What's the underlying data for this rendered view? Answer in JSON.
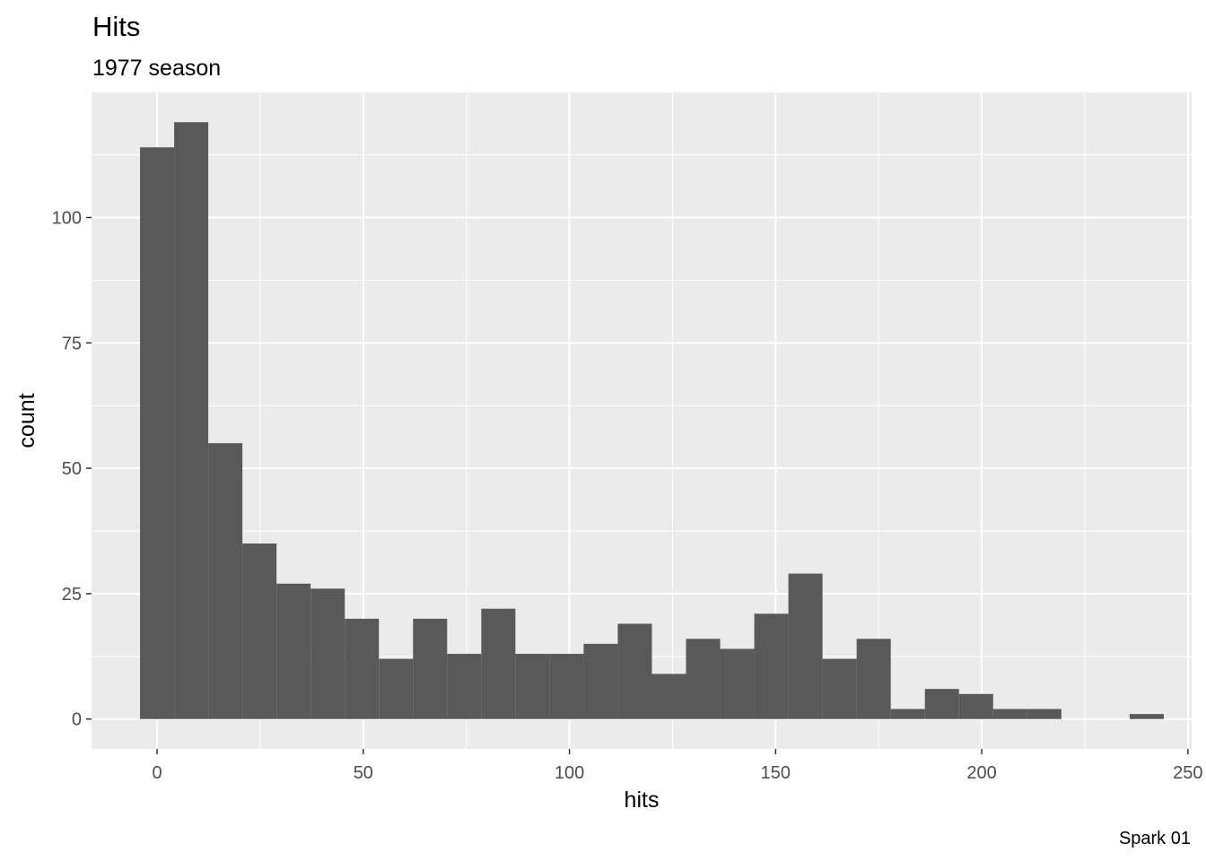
{
  "chart_data": {
    "type": "bar",
    "title": "Hits",
    "subtitle": "1977 season",
    "xlabel": "hits",
    "ylabel": "count",
    "caption": "Spark 01",
    "bin_width": 8.2759,
    "bins": [
      {
        "x": 0.0,
        "count": 114
      },
      {
        "x": 8.2759,
        "count": 119
      },
      {
        "x": 16.5517,
        "count": 55
      },
      {
        "x": 24.8276,
        "count": 35
      },
      {
        "x": 33.1034,
        "count": 27
      },
      {
        "x": 41.3793,
        "count": 26
      },
      {
        "x": 49.6552,
        "count": 20
      },
      {
        "x": 57.931,
        "count": 12
      },
      {
        "x": 66.2069,
        "count": 20
      },
      {
        "x": 74.4828,
        "count": 13
      },
      {
        "x": 82.7586,
        "count": 22
      },
      {
        "x": 91.0345,
        "count": 13
      },
      {
        "x": 99.3103,
        "count": 13
      },
      {
        "x": 107.5862,
        "count": 15
      },
      {
        "x": 115.8621,
        "count": 19
      },
      {
        "x": 124.1379,
        "count": 9
      },
      {
        "x": 132.4138,
        "count": 16
      },
      {
        "x": 140.6897,
        "count": 14
      },
      {
        "x": 148.9655,
        "count": 21
      },
      {
        "x": 157.2414,
        "count": 29
      },
      {
        "x": 165.5172,
        "count": 12
      },
      {
        "x": 173.7931,
        "count": 16
      },
      {
        "x": 182.069,
        "count": 2
      },
      {
        "x": 190.3448,
        "count": 6
      },
      {
        "x": 198.6207,
        "count": 5
      },
      {
        "x": 206.8966,
        "count": 2
      },
      {
        "x": 215.1724,
        "count": 2
      },
      {
        "x": 223.4483,
        "count": 0
      },
      {
        "x": 231.7241,
        "count": 0
      },
      {
        "x": 240.0,
        "count": 1
      }
    ],
    "x_ticks": [
      0,
      50,
      100,
      150,
      200,
      250
    ],
    "y_ticks": [
      0,
      25,
      50,
      75,
      100
    ],
    "x_tick_labels": [
      "0",
      "50",
      "100",
      "150",
      "200",
      "250"
    ],
    "y_tick_labels": [
      "0",
      "25",
      "50",
      "75",
      "100"
    ],
    "xlim": [
      -15.9,
      250.9
    ],
    "ylim": [
      -5.95,
      124.95
    ],
    "bar_color": "#595959",
    "panel_color": "#ebebeb",
    "grid_color": "#ffffff",
    "grid": true,
    "legend": "none"
  }
}
